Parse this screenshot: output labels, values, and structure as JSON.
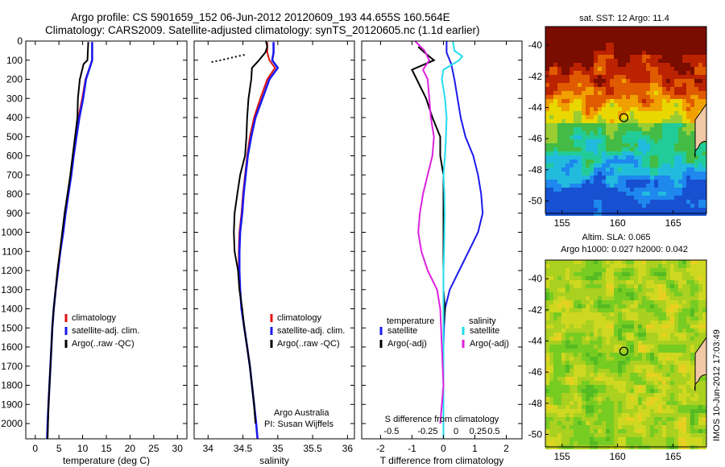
{
  "header": {
    "line1": "Argo profile: CS 5901659_152 06-Jun-2012 20120609_193 44.655S 160.564E",
    "line2": "Climatology: CARS2009. Satellite-adjusted climatology: synTS_20120605.nc (1.1d earlier)"
  },
  "credits": {
    "org": "Argo Australia",
    "pi": "PI: Susan Wijffels",
    "side": "IMOS 10-Jun-2012 17:03:49"
  },
  "colors": {
    "climatology": "#e01010",
    "satellite": "#1a1aee",
    "argo": "#000000",
    "cyan": "#22ddee",
    "magenta": "#dd22dd"
  },
  "chart_data": [
    {
      "type": "line",
      "panel": "temperature",
      "xlabel": "temperature (deg C)",
      "ylabel": "",
      "xlim": [
        -2,
        32
      ],
      "ylim": [
        2080,
        0
      ],
      "xticks": [
        0,
        5,
        10,
        15,
        20,
        25,
        30
      ],
      "yticks": [
        0,
        100,
        200,
        300,
        400,
        500,
        600,
        700,
        800,
        900,
        1000,
        1100,
        1200,
        1300,
        1400,
        1500,
        1600,
        1700,
        1800,
        1900,
        2000
      ],
      "legend": [
        "climatology",
        "satellite-adj. clim.",
        "Argo(..raw -QC)"
      ],
      "series": [
        {
          "name": "climatology",
          "points": [
            [
              12,
              5
            ],
            [
              12,
              100
            ],
            [
              10.6,
              200
            ],
            [
              9.9,
              300
            ],
            [
              9.1,
              400
            ],
            [
              8.5,
              500
            ],
            [
              8.0,
              600
            ],
            [
              7.5,
              700
            ],
            [
              6.9,
              800
            ],
            [
              6.3,
              900
            ],
            [
              5.8,
              1000
            ],
            [
              5.2,
              1100
            ],
            [
              4.7,
              1200
            ],
            [
              4.3,
              1300
            ],
            [
              3.9,
              1400
            ],
            [
              3.6,
              1500
            ],
            [
              3.4,
              1600
            ],
            [
              3.2,
              1700
            ],
            [
              3.0,
              1800
            ],
            [
              2.8,
              1900
            ],
            [
              2.6,
              2000
            ],
            [
              2.5,
              2080
            ]
          ]
        },
        {
          "name": "satellite-adj. clim.",
          "points": [
            [
              12,
              5
            ],
            [
              12,
              100
            ],
            [
              10.7,
              200
            ],
            [
              10.1,
              300
            ],
            [
              9.3,
              400
            ],
            [
              8.7,
              500
            ],
            [
              8.1,
              600
            ],
            [
              7.6,
              700
            ],
            [
              7.0,
              800
            ],
            [
              6.4,
              900
            ],
            [
              5.9,
              1000
            ],
            [
              5.3,
              1100
            ],
            [
              4.8,
              1200
            ],
            [
              4.3,
              1300
            ],
            [
              3.9,
              1400
            ],
            [
              3.6,
              1500
            ],
            [
              3.4,
              1600
            ],
            [
              3.2,
              1700
            ],
            [
              3.0,
              1800
            ],
            [
              2.8,
              1900
            ],
            [
              2.6,
              2000
            ],
            [
              2.5,
              2080
            ]
          ]
        },
        {
          "name": "Argo(..raw -QC)",
          "points": [
            [
              11.2,
              5
            ],
            [
              11.0,
              100
            ],
            [
              10.2,
              120
            ],
            [
              9.4,
              200
            ],
            [
              9.0,
              300
            ],
            [
              8.9,
              400
            ],
            [
              8.4,
              500
            ],
            [
              7.9,
              600
            ],
            [
              7.4,
              700
            ],
            [
              6.8,
              800
            ],
            [
              6.2,
              900
            ],
            [
              5.7,
              1000
            ],
            [
              5.2,
              1100
            ],
            [
              4.7,
              1200
            ],
            [
              4.3,
              1300
            ],
            [
              3.9,
              1400
            ],
            [
              3.6,
              1500
            ],
            [
              3.4,
              1600
            ],
            [
              3.2,
              1700
            ],
            [
              3.0,
              1800
            ],
            [
              2.8,
              1900
            ],
            [
              2.7,
              2000
            ],
            [
              2.6,
              2080
            ]
          ]
        }
      ]
    },
    {
      "type": "line",
      "panel": "salinity",
      "xlabel": "salinity",
      "ylabel": "",
      "xlim": [
        33.8,
        36.1
      ],
      "ylim": [
        2080,
        0
      ],
      "xticks": [
        34,
        34.5,
        35,
        35.5,
        36
      ],
      "legend": [
        "climatology",
        "satellite-adj. clim.",
        "Argo(..raw -QC)"
      ],
      "series": [
        {
          "name": "climatology",
          "points": [
            [
              34.85,
              5
            ],
            [
              34.85,
              60
            ],
            [
              34.88,
              100
            ],
            [
              34.96,
              140
            ],
            [
              34.85,
              200
            ],
            [
              34.75,
              300
            ],
            [
              34.66,
              400
            ],
            [
              34.6,
              500
            ],
            [
              34.56,
              600
            ],
            [
              34.53,
              700
            ],
            [
              34.5,
              800
            ],
            [
              34.48,
              900
            ],
            [
              34.45,
              1000
            ],
            [
              34.44,
              1100
            ],
            [
              34.44,
              1200
            ],
            [
              34.46,
              1300
            ],
            [
              34.48,
              1400
            ],
            [
              34.52,
              1500
            ],
            [
              34.56,
              1600
            ],
            [
              34.6,
              1700
            ],
            [
              34.63,
              1800
            ],
            [
              34.66,
              1900
            ],
            [
              34.69,
              2000
            ],
            [
              34.71,
              2080
            ]
          ]
        },
        {
          "name": "satellite-adj. clim.",
          "points": [
            [
              34.94,
              5
            ],
            [
              34.94,
              60
            ],
            [
              34.92,
              100
            ],
            [
              35.0,
              140
            ],
            [
              34.88,
              200
            ],
            [
              34.78,
              300
            ],
            [
              34.68,
              400
            ],
            [
              34.62,
              500
            ],
            [
              34.57,
              600
            ],
            [
              34.54,
              700
            ],
            [
              34.51,
              800
            ],
            [
              34.49,
              900
            ],
            [
              34.46,
              1000
            ],
            [
              34.45,
              1100
            ],
            [
              34.45,
              1200
            ],
            [
              34.46,
              1300
            ],
            [
              34.48,
              1400
            ],
            [
              34.52,
              1500
            ],
            [
              34.56,
              1600
            ],
            [
              34.6,
              1700
            ],
            [
              34.63,
              1800
            ],
            [
              34.66,
              1900
            ],
            [
              34.69,
              2000
            ],
            [
              34.71,
              2080
            ]
          ]
        },
        {
          "name": "Argo(..raw -QC)",
          "points": [
            [
              34.83,
              0
            ],
            [
              34.85,
              30
            ],
            [
              34.82,
              60
            ],
            [
              34.73,
              100
            ],
            [
              34.63,
              140
            ],
            [
              34.62,
              200
            ],
            [
              34.58,
              300
            ],
            [
              34.56,
              400
            ],
            [
              34.55,
              500
            ],
            [
              34.53,
              600
            ],
            [
              34.46,
              700
            ],
            [
              34.42,
              800
            ],
            [
              34.38,
              900
            ],
            [
              34.37,
              1000
            ],
            [
              34.38,
              1100
            ],
            [
              34.43,
              1200
            ],
            [
              34.45,
              1300
            ],
            [
              34.49,
              1400
            ],
            [
              34.52,
              1500
            ],
            [
              34.56,
              1600
            ],
            [
              34.6,
              1700
            ],
            [
              34.63,
              1800
            ],
            [
              34.66,
              1900
            ],
            [
              34.68,
              2000
            ]
          ]
        },
        {
          "name": "",
          "dotted": true,
          "points": [
            [
              34.05,
              110
            ],
            [
              34.18,
              100
            ],
            [
              34.3,
              90
            ],
            [
              34.42,
              80
            ],
            [
              34.55,
              70
            ]
          ]
        }
      ]
    },
    {
      "type": "line",
      "panel": "difference",
      "xlabel": "T difference from climatology",
      "xlabel2": "S difference from climatology",
      "xlim": [
        -2.6,
        2.5
      ],
      "ylim": [
        2080,
        0
      ],
      "xticks": [
        -2,
        -1,
        0,
        1,
        2
      ],
      "s_xticks": [
        "-0.5",
        "-0.25",
        "0",
        "0.25",
        "0.5"
      ],
      "legend": {
        "temperature": "temperature",
        "salinity": "salinity",
        "t_satellite": "satellite",
        "t_argo": "Argo(-adj)",
        "s_satellite": "satellite",
        "s_argo": "Argo(-adj)"
      },
      "series": [
        {
          "name": "satellite",
          "points": [
            [
              0.1,
              0
            ],
            [
              0.1,
              60
            ],
            [
              0.25,
              120
            ],
            [
              0.35,
              200
            ],
            [
              0.45,
              300
            ],
            [
              0.55,
              400
            ],
            [
              0.7,
              500
            ],
            [
              0.95,
              600
            ],
            [
              1.1,
              700
            ],
            [
              1.2,
              800
            ],
            [
              1.25,
              900
            ],
            [
              1.1,
              1000
            ],
            [
              0.8,
              1100
            ],
            [
              0.5,
              1200
            ],
            [
              0.2,
              1300
            ],
            [
              0.05,
              1400
            ],
            [
              0.02,
              1500
            ],
            [
              0,
              1600
            ],
            [
              0,
              2080
            ]
          ]
        },
        {
          "name": "Argo(-adj)",
          "points": [
            [
              -0.8,
              30
            ],
            [
              -0.6,
              60
            ],
            [
              -0.3,
              100
            ],
            [
              -1.0,
              150
            ],
            [
              -0.85,
              200
            ],
            [
              -0.55,
              300
            ],
            [
              -0.35,
              400
            ],
            [
              -0.1,
              500
            ],
            [
              -0.1,
              600
            ],
            [
              0,
              700
            ],
            [
              0,
              800
            ],
            [
              0,
              1000
            ],
            [
              0,
              1200
            ],
            [
              0,
              1300
            ],
            [
              0.05,
              1400
            ],
            [
              0,
              1500
            ],
            [
              0,
              2000
            ]
          ]
        },
        {
          "name": "satellite",
          "points": [
            [
              0.3,
              0
            ],
            [
              0.35,
              50
            ],
            [
              0.6,
              80
            ],
            [
              0.5,
              100
            ],
            [
              0.0,
              150
            ],
            [
              -0.05,
              200
            ],
            [
              0.05,
              300
            ],
            [
              0.1,
              400
            ],
            [
              0.08,
              500
            ],
            [
              0.05,
              600
            ],
            [
              0,
              700
            ],
            [
              0.03,
              800
            ],
            [
              0.04,
              900
            ],
            [
              0.03,
              1000
            ],
            [
              0.02,
              1100
            ],
            [
              0,
              1200
            ],
            [
              0,
              1400
            ],
            [
              0,
              2080
            ]
          ]
        },
        {
          "name": "Argo(-adj)",
          "points": [
            [
              -0.9,
              0
            ],
            [
              -0.6,
              50
            ],
            [
              -0.45,
              100
            ],
            [
              -0.65,
              150
            ],
            [
              -0.5,
              200
            ],
            [
              -0.45,
              300
            ],
            [
              -0.4,
              400
            ],
            [
              -0.3,
              500
            ],
            [
              -0.35,
              600
            ],
            [
              -0.5,
              700
            ],
            [
              -0.65,
              800
            ],
            [
              -0.75,
              900
            ],
            [
              -0.8,
              1000
            ],
            [
              -0.7,
              1100
            ],
            [
              -0.5,
              1200
            ],
            [
              -0.2,
              1300
            ],
            [
              -0.1,
              1400
            ],
            [
              -0.05,
              1600
            ],
            [
              0,
              1800
            ],
            [
              -0.1,
              2000
            ]
          ]
        }
      ]
    }
  ],
  "maps": [
    {
      "type": "heatmap",
      "title": "sat. SST: 12 Argo: 11.4",
      "xticks": [
        "155",
        "160",
        "165"
      ],
      "yticks": [
        "-40",
        "-42",
        "-44",
        "-46",
        "-48",
        "-50"
      ],
      "xlim": [
        153.5,
        168
      ],
      "ylim": [
        -50.8,
        -38.8
      ],
      "marker": [
        160.564,
        -44.655
      ],
      "colormap": [
        "#7a0c00",
        "#bb2200",
        "#e05a00",
        "#f0a000",
        "#e8d800",
        "#9acd32",
        "#44bb44",
        "#22cc99",
        "#22bbdd",
        "#1e88ee",
        "#1750d0"
      ]
    },
    {
      "type": "heatmap",
      "title": "Altim. SLA: 0.065",
      "subtitle": "Argo h1000: 0.027 h2000: 0.042",
      "xticks": [
        "155",
        "160",
        "165"
      ],
      "yticks": [
        "-40",
        "-42",
        "-44",
        "-46",
        "-48",
        "-50"
      ],
      "xlim": [
        153.5,
        168
      ],
      "ylim": [
        -50.8,
        -38.8
      ],
      "marker": [
        160.564,
        -44.655
      ],
      "colormap": [
        "#55bb22",
        "#77cc22",
        "#aad020",
        "#cfd820",
        "#e8d020"
      ]
    }
  ]
}
